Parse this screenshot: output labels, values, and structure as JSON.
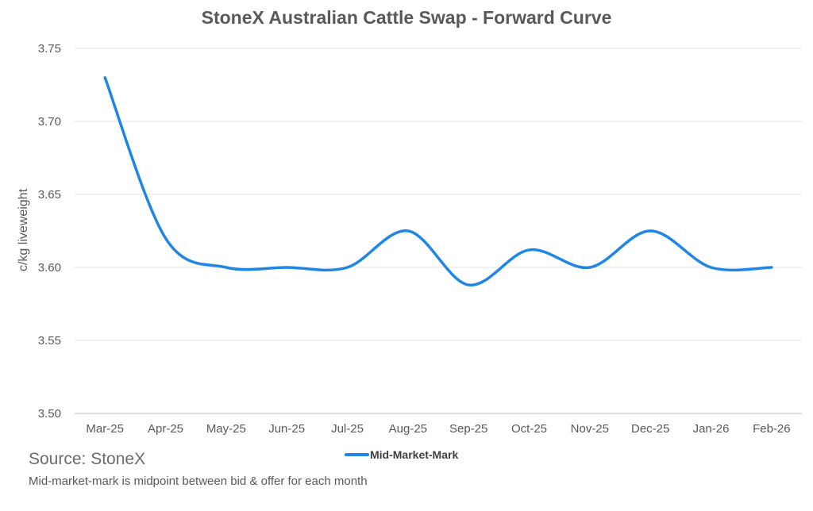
{
  "chart_data": {
    "type": "line",
    "title": "StoneX Australian Cattle Swap - Forward Curve",
    "xlabel": "",
    "ylabel": "c/kg liveweight",
    "categories": [
      "Mar-25",
      "Apr-25",
      "May-25",
      "Jun-25",
      "Jul-25",
      "Aug-25",
      "Sep-25",
      "Oct-25",
      "Nov-25",
      "Dec-25",
      "Jan-26",
      "Feb-26"
    ],
    "series": [
      {
        "name": "Mid-Market-Mark",
        "color": "#1f86e6",
        "values": [
          3.73,
          3.62,
          3.6,
          3.6,
          3.6,
          3.625,
          3.588,
          3.612,
          3.6,
          3.625,
          3.6,
          3.6
        ]
      }
    ],
    "ylim": [
      3.5,
      3.75
    ],
    "yticks": [
      "3.50",
      "3.55",
      "3.60",
      "3.65",
      "3.70",
      "3.75"
    ],
    "grid": "horizontal",
    "legend": "bottom-center",
    "smooth": true
  },
  "footer": {
    "source": "Source: StoneX",
    "note": "Mid-market-mark is midpoint between bid & offer for each month"
  }
}
